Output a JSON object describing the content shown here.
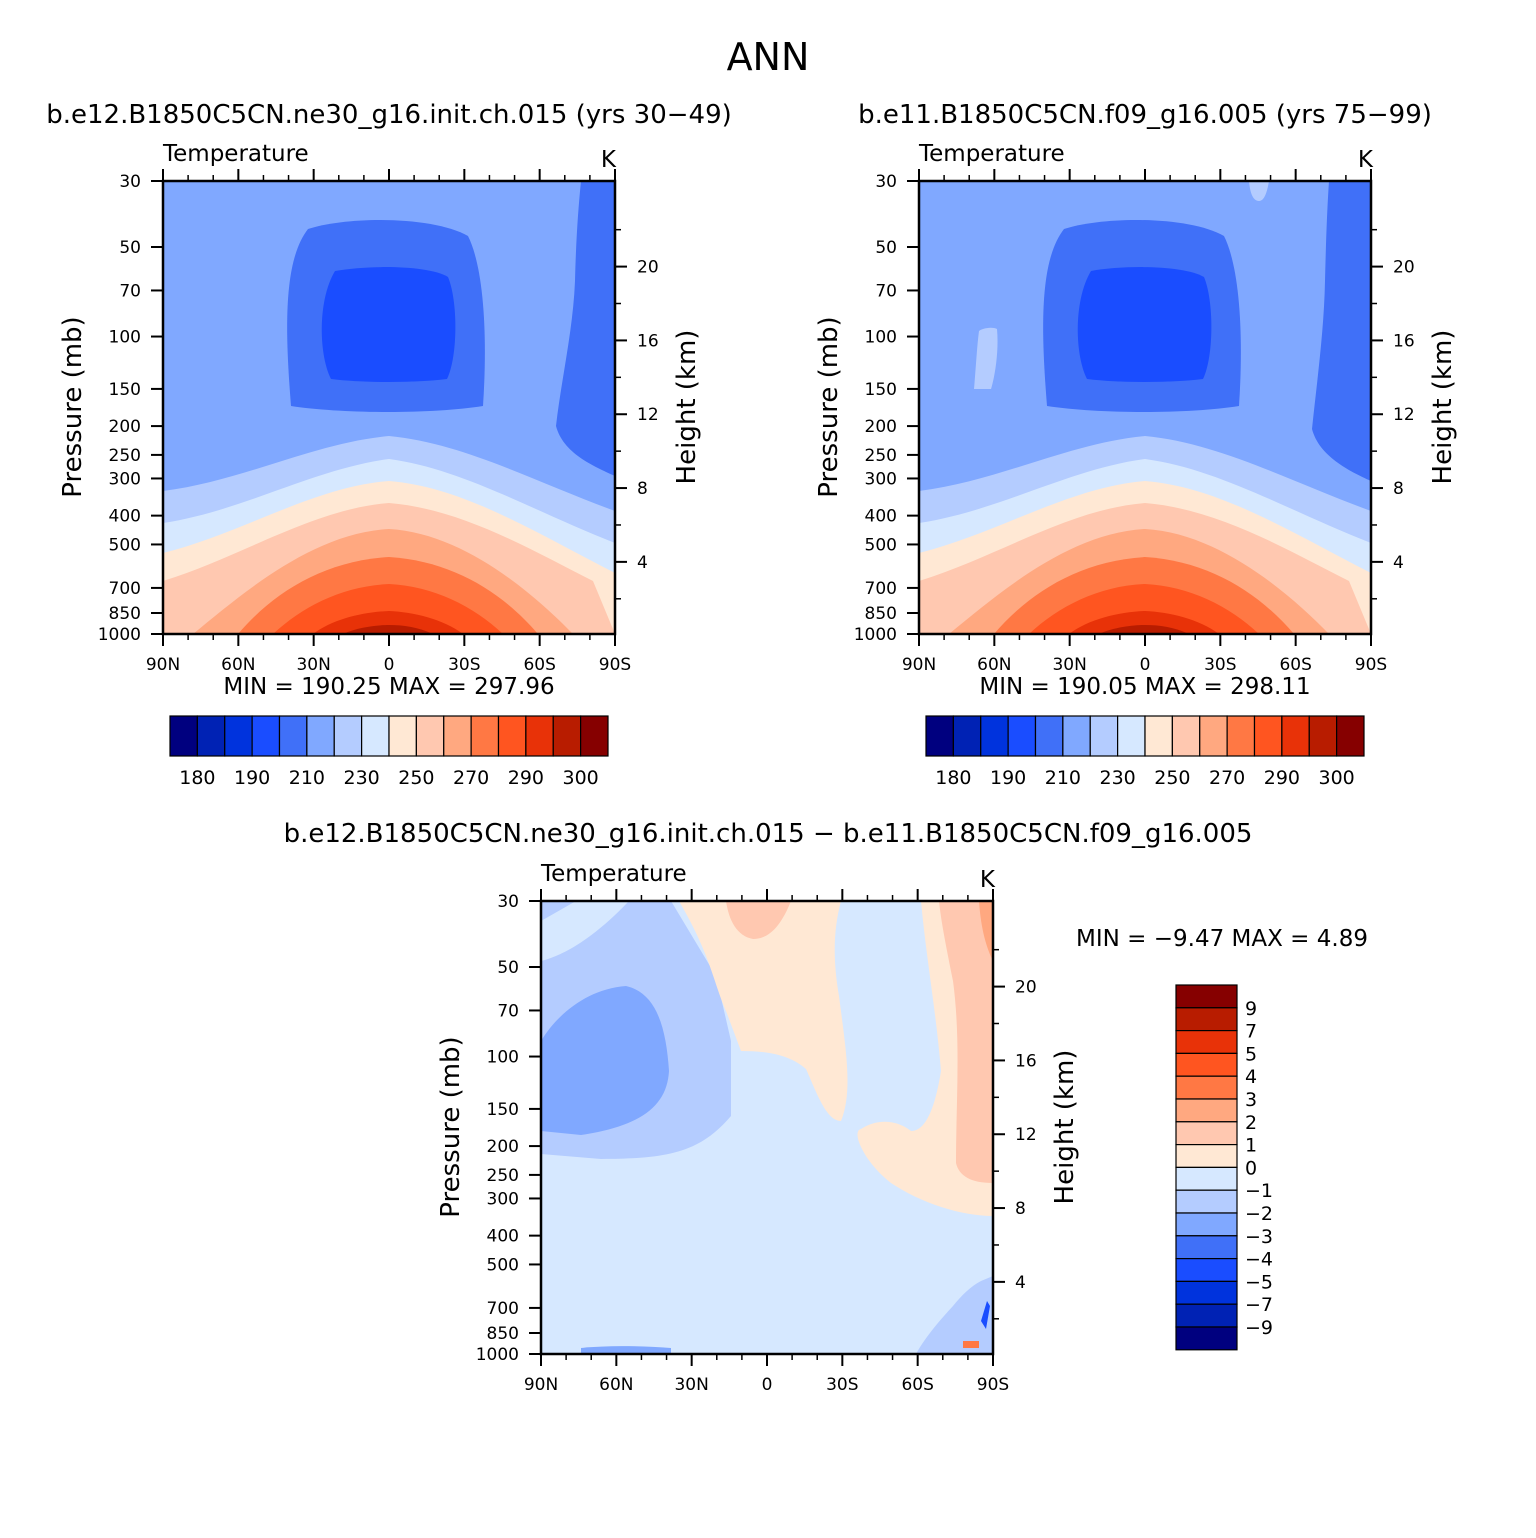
{
  "figure_title": "ANN",
  "panels": [
    {
      "id": "p1",
      "case_title": "b.e12.B1850C5CN.ne30_g16.init.ch.015 (yrs 30−49)",
      "left_label": "Temperature",
      "right_label": "K",
      "stats": "MIN =  190.25   MAX =  297.96"
    },
    {
      "id": "p2",
      "case_title": "b.e11.B1850C5CN.f09_g16.005 (yrs 75−99)",
      "left_label": "Temperature",
      "right_label": "K",
      "stats": "MIN =  190.05   MAX =  298.11"
    },
    {
      "id": "p3",
      "case_title": "b.e12.B1850C5CN.ne30_g16.init.ch.015 − b.e11.B1850C5CN.f09_g16.005",
      "left_label": "Temperature",
      "right_label": "K",
      "stats": "MIN =   −9.47   MAX =    4.89"
    }
  ],
  "axes": {
    "ylabel": "Pressure (mb)",
    "y2label": "Height (km)",
    "pressure_ticks": [
      "30",
      "50",
      "70",
      "100",
      "150",
      "200",
      "250",
      "300",
      "400",
      "500",
      "700",
      "850",
      "1000"
    ],
    "height_ticks": [
      "20",
      "16",
      "12",
      "8",
      "4"
    ],
    "lat_ticks": [
      "90N",
      "60N",
      "30N",
      "0",
      "30S",
      "60S",
      "90S"
    ]
  },
  "colorbar_main": {
    "colors": [
      "#00007f",
      "#0022b4",
      "#0033dd",
      "#1a4dff",
      "#4070f8",
      "#80a8ff",
      "#b4ccff",
      "#d6e8ff",
      "#ffe8d4",
      "#ffc8b0",
      "#ffa880",
      "#ff7844",
      "#ff5520",
      "#e83208",
      "#b81c00",
      "#860000"
    ],
    "labels": [
      "180",
      "190",
      "210",
      "230",
      "250",
      "270",
      "290",
      "300"
    ]
  },
  "colorbar_diff": {
    "colors_top_to_bottom": [
      "#860000",
      "#b81c00",
      "#e83208",
      "#ff5520",
      "#ff7844",
      "#ffa880",
      "#ffc8b0",
      "#ffe8d4",
      "#d6e8ff",
      "#b4ccff",
      "#80a8ff",
      "#4070f8",
      "#1a4dff",
      "#0033dd",
      "#0022b4",
      "#00007f"
    ],
    "labels": [
      "9",
      "7",
      "5",
      "4",
      "3",
      "2",
      "1",
      "0",
      "−1",
      "−2",
      "−3",
      "−4",
      "−5",
      "−7",
      "−9"
    ]
  },
  "chart_data": [
    {
      "type": "heatmap",
      "title": "b.e12.B1850C5CN.ne30_g16.init.ch.015 (yrs 30−49)",
      "variable": "Temperature",
      "units": "K",
      "xlabel": "",
      "ylabel": "Pressure (mb)",
      "y2label": "Height (km)",
      "x": [
        "90N",
        "60N",
        "30N",
        "0",
        "30S",
        "60S",
        "90S"
      ],
      "y": [
        30,
        50,
        70,
        100,
        150,
        200,
        250,
        300,
        400,
        500,
        700,
        850,
        1000
      ],
      "contour_levels": [
        180,
        185,
        190,
        200,
        210,
        220,
        230,
        240,
        250,
        260,
        270,
        280,
        290,
        295,
        300
      ],
      "min": 190.25,
      "max": 297.96
    },
    {
      "type": "heatmap",
      "title": "b.e11.B1850C5CN.f09_g16.005 (yrs 75−99)",
      "variable": "Temperature",
      "units": "K",
      "xlabel": "",
      "ylabel": "Pressure (mb)",
      "y2label": "Height (km)",
      "x": [
        "90N",
        "60N",
        "30N",
        "0",
        "30S",
        "60S",
        "90S"
      ],
      "y": [
        30,
        50,
        70,
        100,
        150,
        200,
        250,
        300,
        400,
        500,
        700,
        850,
        1000
      ],
      "contour_levels": [
        180,
        185,
        190,
        200,
        210,
        220,
        230,
        240,
        250,
        260,
        270,
        280,
        290,
        295,
        300
      ],
      "min": 190.05,
      "max": 298.11
    },
    {
      "type": "heatmap",
      "title": "b.e12.B1850C5CN.ne30_g16.init.ch.015 − b.e11.B1850C5CN.f09_g16.005",
      "variable": "Temperature",
      "units": "K",
      "xlabel": "",
      "ylabel": "Pressure (mb)",
      "y2label": "Height (km)",
      "x": [
        "90N",
        "60N",
        "30N",
        "0",
        "30S",
        "60S",
        "90S"
      ],
      "y": [
        30,
        50,
        70,
        100,
        150,
        200,
        250,
        300,
        400,
        500,
        700,
        850,
        1000
      ],
      "contour_levels": [
        -9,
        -7,
        -5,
        -4,
        -3,
        -2,
        -1,
        0,
        1,
        2,
        3,
        4,
        5,
        7,
        9
      ],
      "min": -9.47,
      "max": 4.89
    }
  ]
}
